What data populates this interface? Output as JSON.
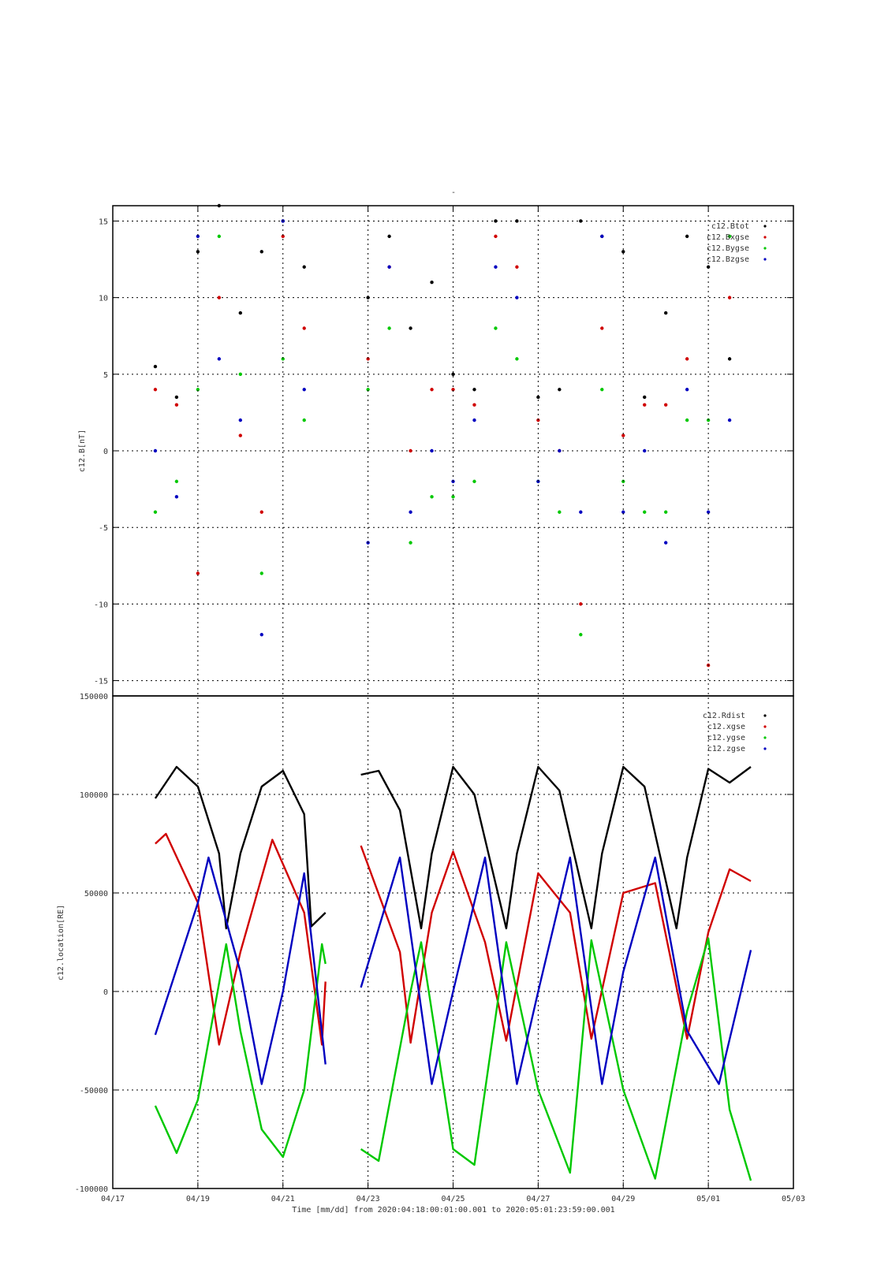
{
  "colors": {
    "black": "#000000",
    "red": "#d00000",
    "green": "#00c800",
    "blue": "#0000c0"
  },
  "chart_data": [
    {
      "type": "scatter",
      "title": "-",
      "ylabel": "c12.B[nT]",
      "ylim": [
        -16,
        16
      ],
      "yticks": [
        -15,
        -10,
        -5,
        0,
        5,
        10,
        15
      ],
      "xlim": [
        "04/17",
        "05/03"
      ],
      "grid": true,
      "legend_position": "top-right",
      "legend": [
        {
          "name": "c12.Btot",
          "color": "#000000"
        },
        {
          "name": "c12.Bxgse",
          "color": "#d00000"
        },
        {
          "name": "c12.Bygse",
          "color": "#00c800"
        },
        {
          "name": "c12.Bzgse",
          "color": "#0000c0"
        }
      ],
      "data_range": {
        "start": "2020-04-18 00:01",
        "end": "2020-05-01 23:59",
        "gap": [
          "2020-04-22 00:00",
          "2020-04-22 20:00"
        ]
      },
      "series": [
        {
          "name": "c12.Btot",
          "color": "#000000",
          "x": [
            "04/18 00:00",
            "04/18 12:00",
            "04/19 00:00",
            "04/19 12:00",
            "04/20 00:00",
            "04/20 12:00",
            "04/21 00:00",
            "04/21 12:00",
            "04/23 00:00",
            "04/23 12:00",
            "04/24 00:00",
            "04/24 12:00",
            "04/25 00:00",
            "04/25 12:00",
            "04/26 00:00",
            "04/26 12:00",
            "04/27 00:00",
            "04/27 12:00",
            "04/28 00:00",
            "04/28 12:00",
            "04/29 00:00",
            "04/29 12:00",
            "04/30 00:00",
            "04/30 12:00",
            "05/01 00:00",
            "05/01 12:00"
          ],
          "y": [
            5.5,
            3.5,
            13,
            16,
            9,
            13,
            15,
            12,
            10,
            14,
            8,
            11,
            5,
            4,
            15,
            15,
            3.5,
            4,
            15,
            14,
            13,
            3.5,
            9,
            14,
            12,
            6
          ]
        },
        {
          "name": "c12.Bxgse",
          "color": "#d00000",
          "x": [
            "04/18 00:00",
            "04/18 12:00",
            "04/19 00:00",
            "04/19 12:00",
            "04/20 00:00",
            "04/20 12:00",
            "04/21 00:00",
            "04/21 12:00",
            "04/23 00:00",
            "04/23 12:00",
            "04/24 00:00",
            "04/24 12:00",
            "04/25 00:00",
            "04/25 12:00",
            "04/26 00:00",
            "04/26 12:00",
            "04/27 00:00",
            "04/27 12:00",
            "04/28 00:00",
            "04/28 12:00",
            "04/29 00:00",
            "04/29 12:00",
            "04/30 00:00",
            "04/30 12:00",
            "05/01 00:00",
            "05/01 12:00"
          ],
          "y": [
            4,
            3,
            -8,
            10,
            1,
            -4,
            14,
            8,
            6,
            12,
            0,
            4,
            4,
            3,
            14,
            12,
            2,
            0,
            -10,
            8,
            1,
            3,
            3,
            6,
            -14,
            10
          ]
        },
        {
          "name": "c12.Bygse",
          "color": "#00c800",
          "x": [
            "04/18 00:00",
            "04/18 12:00",
            "04/19 00:00",
            "04/19 12:00",
            "04/20 00:00",
            "04/20 12:00",
            "04/21 00:00",
            "04/21 12:00",
            "04/23 00:00",
            "04/23 12:00",
            "04/24 00:00",
            "04/24 12:00",
            "04/25 00:00",
            "04/25 12:00",
            "04/26 00:00",
            "04/26 12:00",
            "04/27 00:00",
            "04/27 12:00",
            "04/28 00:00",
            "04/28 12:00",
            "04/29 00:00",
            "04/29 12:00",
            "04/30 00:00",
            "04/30 12:00",
            "05/01 00:00",
            "05/01 12:00"
          ],
          "y": [
            -4,
            -2,
            4,
            14,
            5,
            -8,
            6,
            2,
            4,
            8,
            -6,
            -3,
            -3,
            -2,
            8,
            6,
            -2,
            -4,
            -12,
            4,
            -2,
            -4,
            -4,
            2,
            2,
            14
          ]
        },
        {
          "name": "c12.Bzgse",
          "color": "#0000c0",
          "x": [
            "04/18 00:00",
            "04/18 12:00",
            "04/19 00:00",
            "04/19 12:00",
            "04/20 00:00",
            "04/20 12:00",
            "04/21 00:00",
            "04/21 12:00",
            "04/23 00:00",
            "04/23 12:00",
            "04/24 00:00",
            "04/24 12:00",
            "04/25 00:00",
            "04/25 12:00",
            "04/26 00:00",
            "04/26 12:00",
            "04/27 00:00",
            "04/27 12:00",
            "04/28 00:00",
            "04/28 12:00",
            "04/29 00:00",
            "04/29 12:00",
            "04/30 00:00",
            "04/30 12:00",
            "05/01 00:00",
            "05/01 12:00"
          ],
          "y": [
            0,
            -3,
            14,
            6,
            2,
            -12,
            15,
            4,
            -6,
            12,
            -4,
            0,
            -2,
            2,
            12,
            10,
            -2,
            0,
            -4,
            14,
            -4,
            0,
            -6,
            4,
            -4,
            2
          ]
        }
      ]
    },
    {
      "type": "line",
      "ylabel": "c12.location[RE]",
      "xlabel": "Time [mm/dd]  from 2020:04:18:00:01:00.001  to  2020:05:01:23:59:00.001",
      "ylim": [
        -100000,
        150000
      ],
      "yticks": [
        -100000,
        -50000,
        0,
        50000,
        100000,
        150000
      ],
      "xlim": [
        "04/17",
        "05/03"
      ],
      "xticks": [
        "04/17",
        "04/19",
        "04/21",
        "04/23",
        "04/25",
        "04/27",
        "04/29",
        "05/01",
        "05/03"
      ],
      "grid": true,
      "legend_position": "top-right",
      "legend": [
        {
          "name": "c12.Rdist",
          "color": "#000000"
        },
        {
          "name": "c12.xgse",
          "color": "#d00000"
        },
        {
          "name": "c12.ygse",
          "color": "#00c800"
        },
        {
          "name": "c12.zgse",
          "color": "#0000c0"
        }
      ],
      "series": [
        {
          "name": "c12.Rdist",
          "color": "#000000",
          "x": [
            "04/18 00:00",
            "04/18 12:00",
            "04/19 00:00",
            "04/19 12:00",
            "04/19 16:00",
            "04/20 00:00",
            "04/20 12:00",
            "04/21 00:00",
            "04/21 12:00",
            "04/21 16:00",
            "04/22 00:00",
            "04/22 20:00",
            "04/23 06:00",
            "04/23 18:00",
            "04/24 06:00",
            "04/24 12:00",
            "04/25 00:00",
            "04/25 12:00",
            "04/26 06:00",
            "04/26 12:00",
            "04/27 00:00",
            "04/27 12:00",
            "04/28 06:00",
            "04/28 12:00",
            "04/29 00:00",
            "04/29 12:00",
            "04/30 06:00",
            "04/30 12:00",
            "05/01 00:00",
            "05/01 12:00",
            "05/01 23:59"
          ],
          "y": [
            98000,
            114000,
            104000,
            70000,
            32000,
            70000,
            104000,
            112000,
            90000,
            33000,
            40000,
            110000,
            112000,
            92000,
            32000,
            70000,
            114000,
            100000,
            32000,
            70000,
            114000,
            102000,
            32000,
            70000,
            114000,
            104000,
            32000,
            68000,
            113000,
            106000,
            114000
          ]
        },
        {
          "name": "c12.xgse",
          "color": "#d00000",
          "x": [
            "04/18 00:00",
            "04/18 06:00",
            "04/19 00:00",
            "04/19 12:00",
            "04/20 00:00",
            "04/20 18:00",
            "04/21 12:00",
            "04/21 22:00",
            "04/22 00:00",
            "04/22 20:00",
            "04/23 18:00",
            "04/24 00:00",
            "04/24 12:00",
            "04/25 00:00",
            "04/25 18:00",
            "04/26 06:00",
            "04/27 00:00",
            "04/27 18:00",
            "04/28 06:00",
            "04/29 00:00",
            "04/29 18:00",
            "04/30 12:00",
            "05/01 00:00",
            "05/01 12:00",
            "05/01 23:59"
          ],
          "y": [
            75000,
            80000,
            45000,
            -27000,
            20000,
            77000,
            40000,
            -27000,
            5000,
            74000,
            20000,
            -26000,
            40000,
            71000,
            25000,
            -25000,
            60000,
            40000,
            -24000,
            50000,
            55000,
            -24000,
            30000,
            62000,
            56000
          ]
        },
        {
          "name": "c12.ygse",
          "color": "#00c800",
          "x": [
            "04/18 00:00",
            "04/18 12:00",
            "04/19 00:00",
            "04/19 16:00",
            "04/20 00:00",
            "04/20 12:00",
            "04/21 00:00",
            "04/21 12:00",
            "04/21 22:00",
            "04/22 00:00",
            "04/22 20:00",
            "04/23 06:00",
            "04/24 00:00",
            "04/24 06:00",
            "04/25 00:00",
            "04/25 12:00",
            "04/26 06:00",
            "04/27 00:00",
            "04/27 18:00",
            "04/28 06:00",
            "04/29 00:00",
            "04/29 18:00",
            "04/30 12:00",
            "05/01 00:00",
            "05/01 12:00",
            "05/01 23:59"
          ],
          "y": [
            -58000,
            -82000,
            -55000,
            24000,
            -20000,
            -70000,
            -84000,
            -50000,
            24000,
            14000,
            -80000,
            -86000,
            0,
            25000,
            -80000,
            -88000,
            25000,
            -50000,
            -92000,
            26000,
            -50000,
            -95000,
            -10000,
            27000,
            -60000,
            -96000
          ]
        },
        {
          "name": "c12.zgse",
          "color": "#0000c0",
          "x": [
            "04/18 00:00",
            "04/19 00:00",
            "04/19 06:00",
            "04/20 00:00",
            "04/20 12:00",
            "04/21 00:00",
            "04/21 12:00",
            "04/22 00:00",
            "04/22 20:00",
            "04/23 18:00",
            "04/24 12:00",
            "04/25 00:00",
            "04/25 18:00",
            "04/26 12:00",
            "04/27 00:00",
            "04/27 18:00",
            "04/28 12:00",
            "04/29 00:00",
            "04/29 18:00",
            "04/30 12:00",
            "05/01 06:00",
            "05/01 23:59"
          ],
          "y": [
            -22000,
            45000,
            68000,
            10000,
            -47000,
            0,
            60000,
            -37000,
            2000,
            68000,
            -47000,
            0,
            68000,
            -47000,
            0,
            68000,
            -47000,
            10000,
            68000,
            -20000,
            -47000,
            21000
          ]
        }
      ]
    }
  ]
}
